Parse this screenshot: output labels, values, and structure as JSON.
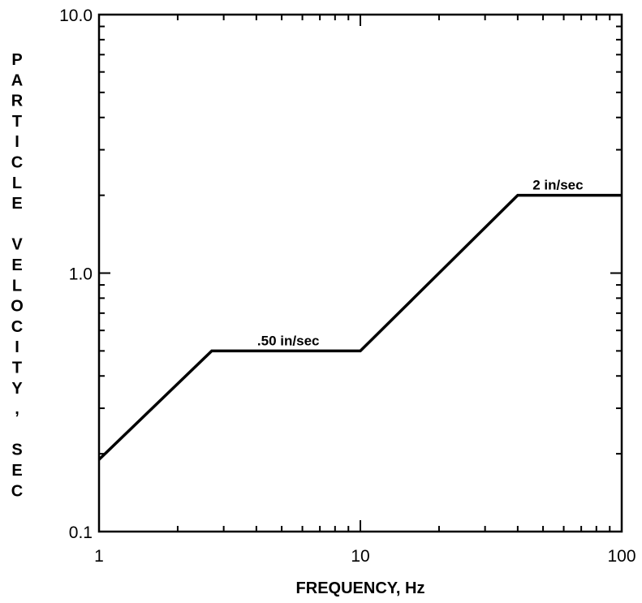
{
  "chart_data": {
    "type": "line",
    "title": "",
    "xlabel": "FREQUENCY, Hz",
    "ylabel": "PARTICLE VELOCITY, SEC",
    "xscale": "log",
    "yscale": "log",
    "xlim": [
      1,
      100
    ],
    "ylim": [
      0.1,
      10
    ],
    "grid": false,
    "x_ticks": [
      {
        "value": 1,
        "label": "1"
      },
      {
        "value": 10,
        "label": "10"
      },
      {
        "value": 100,
        "label": "100"
      }
    ],
    "y_ticks": [
      {
        "value": 0.1,
        "label": "0.1"
      },
      {
        "value": 1,
        "label": "1.0"
      },
      {
        "value": 10,
        "label": "10.0"
      }
    ],
    "series": [
      {
        "x": [
          1,
          2.7,
          10,
          40,
          100
        ],
        "y": [
          0.19,
          0.5,
          0.5,
          2,
          2
        ],
        "color": "#000000"
      }
    ],
    "annotations": [
      {
        "text": ".50 in/sec",
        "x": 5.3,
        "y": 0.5
      },
      {
        "text": "2 in/sec",
        "x": 57,
        "y": 2
      }
    ]
  }
}
